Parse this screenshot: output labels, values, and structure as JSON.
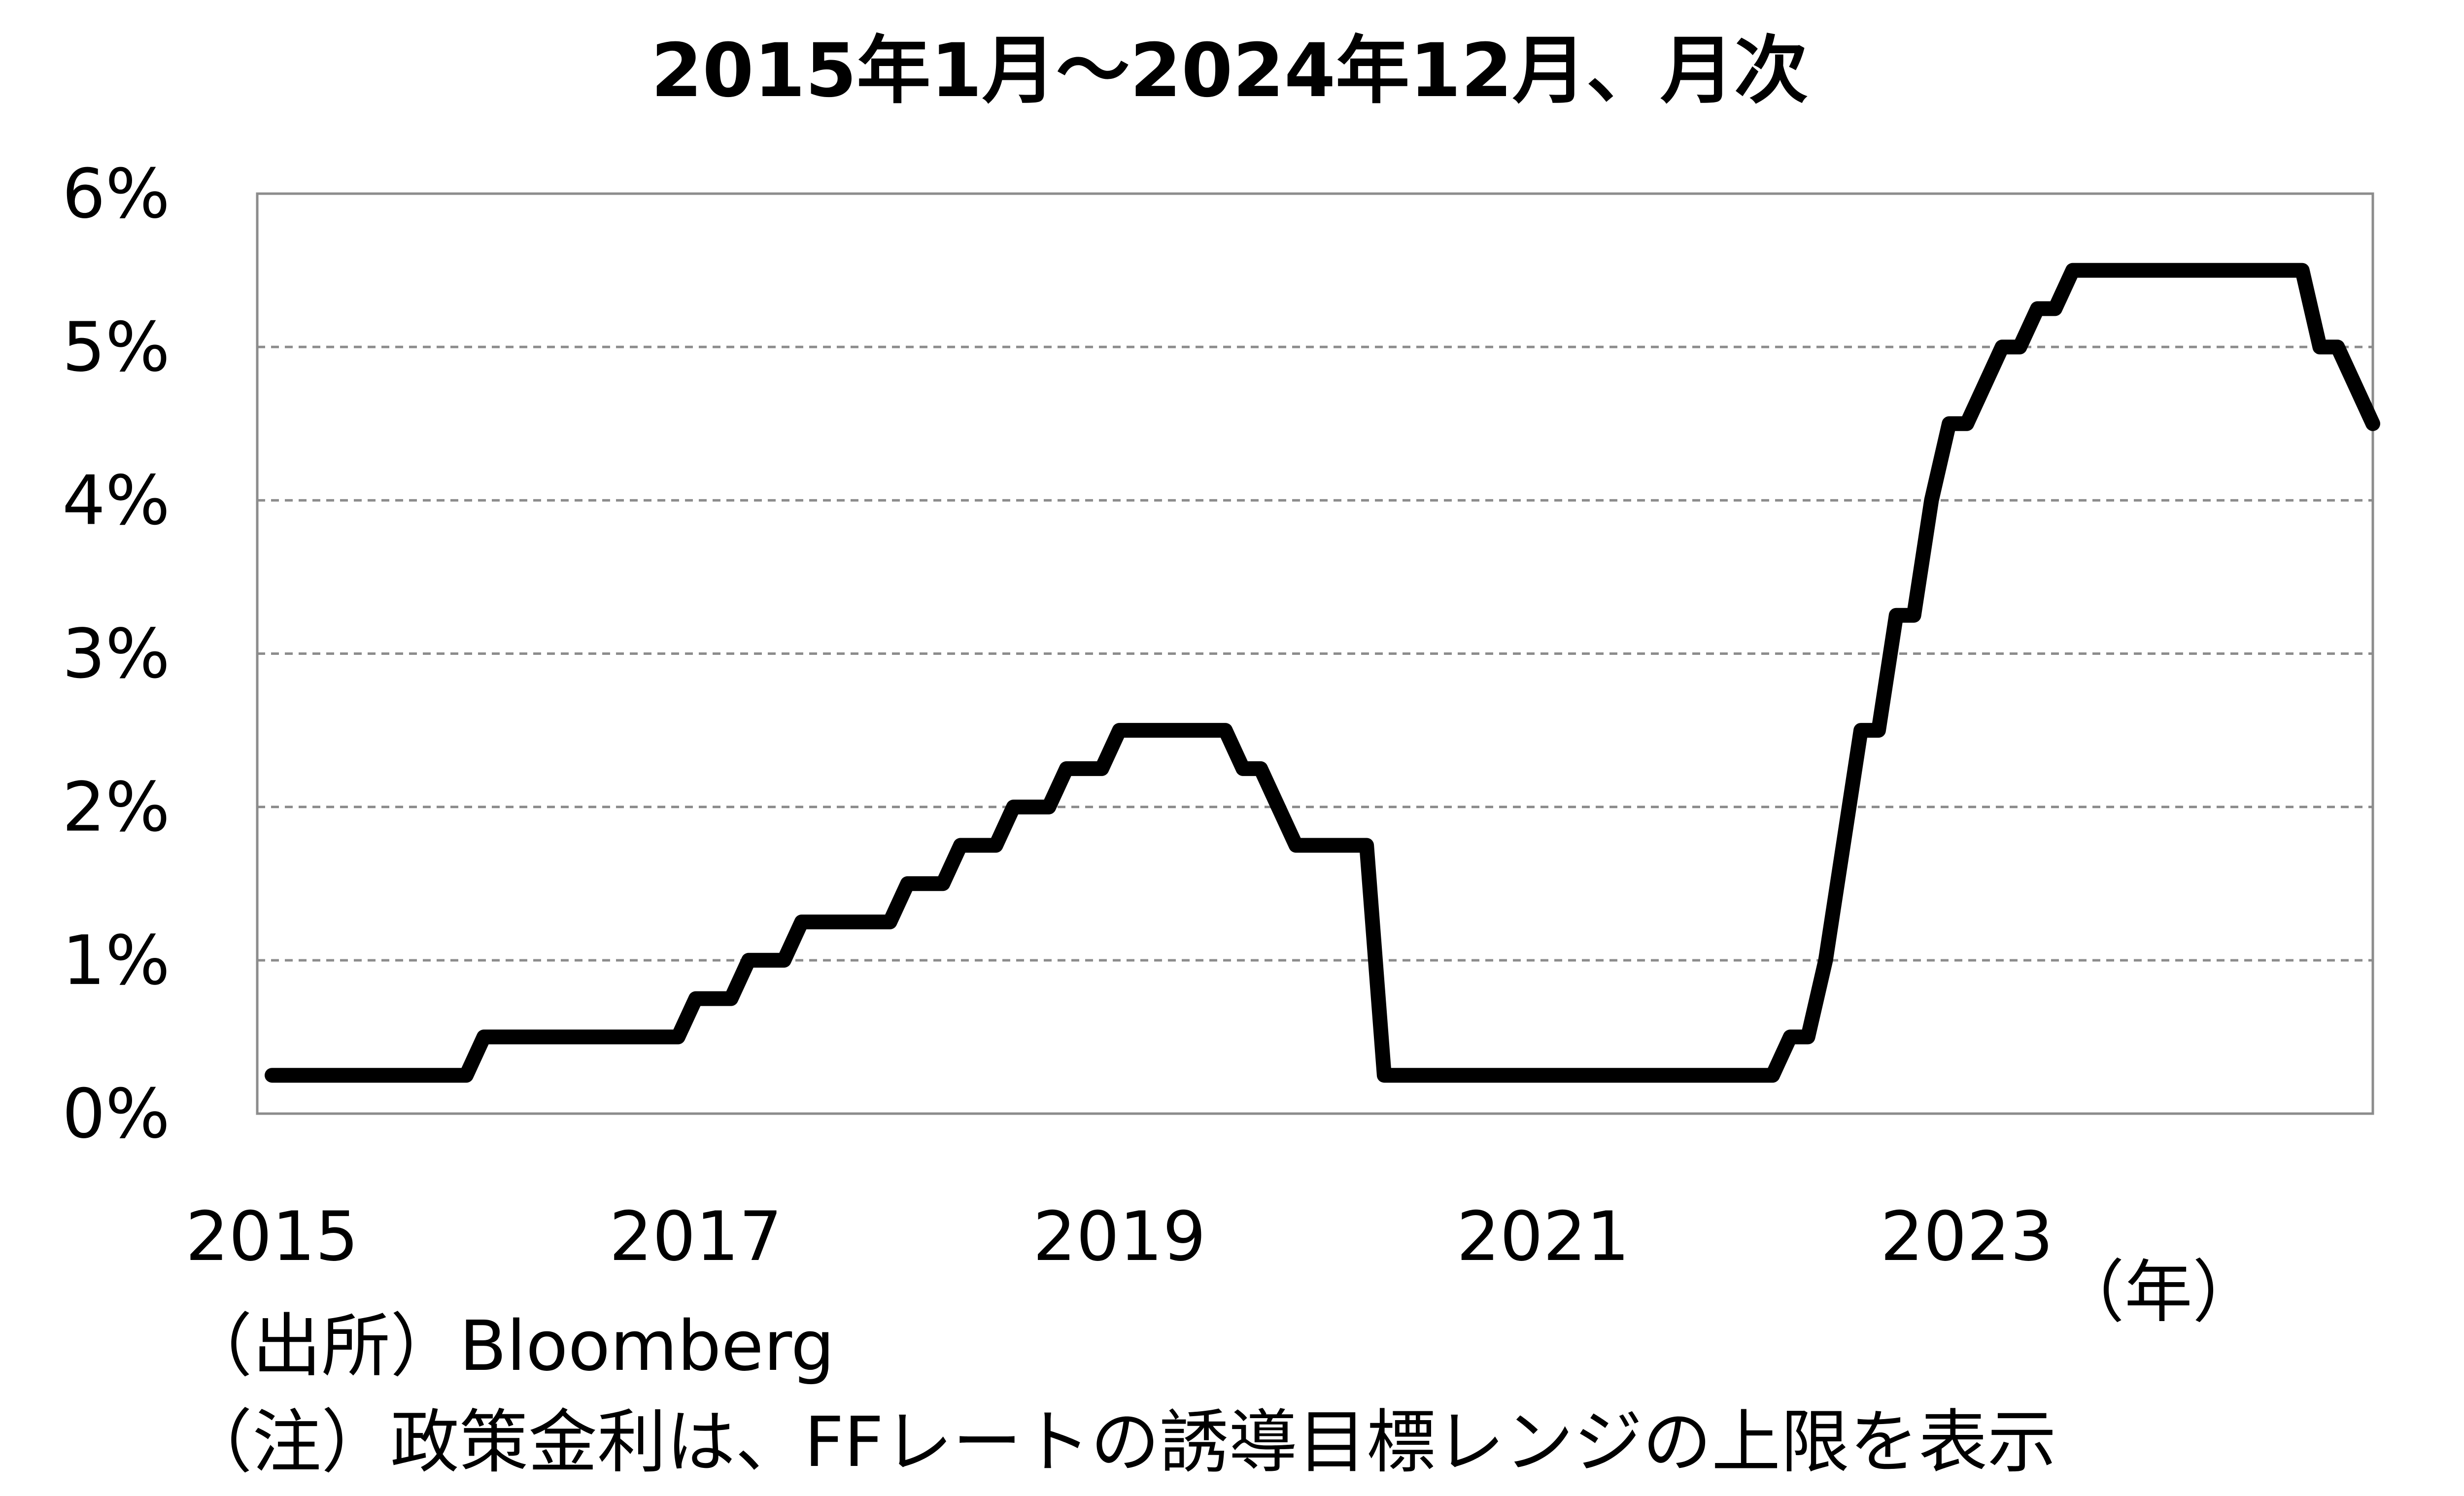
{
  "chart_data": {
    "type": "line",
    "title": "2015年1月～2024年12月、月次",
    "xlabel": "",
    "ylabel": "",
    "x_unit_label": "（年）",
    "x_tick_labels": [
      "2015",
      "2017",
      "2019",
      "2021",
      "2023"
    ],
    "y_tick_labels": [
      "0%",
      "1%",
      "2%",
      "3%",
      "4%",
      "5%",
      "6%"
    ],
    "ylim": [
      0,
      6
    ],
    "x_start": "2015-01",
    "x_end": "2024-12",
    "grid": "horizontal dashed",
    "legend": "none",
    "series": [
      {
        "values": [
          0.25,
          0.25,
          0.25,
          0.25,
          0.25,
          0.25,
          0.25,
          0.25,
          0.25,
          0.25,
          0.25,
          0.25,
          0.5,
          0.5,
          0.5,
          0.5,
          0.5,
          0.5,
          0.5,
          0.5,
          0.5,
          0.5,
          0.5,
          0.5,
          0.75,
          0.75,
          0.75,
          1.0,
          1.0,
          1.0,
          1.25,
          1.25,
          1.25,
          1.25,
          1.25,
          1.25,
          1.5,
          1.5,
          1.5,
          1.75,
          1.75,
          1.75,
          2.0,
          2.0,
          2.0,
          2.25,
          2.25,
          2.25,
          2.5,
          2.5,
          2.5,
          2.5,
          2.5,
          2.5,
          2.5,
          2.25,
          2.25,
          2.0,
          1.75,
          1.75,
          1.75,
          1.75,
          1.75,
          0.25,
          0.25,
          0.25,
          0.25,
          0.25,
          0.25,
          0.25,
          0.25,
          0.25,
          0.25,
          0.25,
          0.25,
          0.25,
          0.25,
          0.25,
          0.25,
          0.25,
          0.25,
          0.25,
          0.25,
          0.25,
          0.25,
          0.25,
          0.5,
          0.5,
          1.0,
          1.75,
          2.5,
          2.5,
          3.25,
          3.25,
          4.0,
          4.5,
          4.5,
          4.75,
          5.0,
          5.0,
          5.25,
          5.25,
          5.5,
          5.5,
          5.5,
          5.5,
          5.5,
          5.5,
          5.5,
          5.5,
          5.5,
          5.5,
          5.5,
          5.5,
          5.5,
          5.5,
          5.0,
          5.0,
          4.75,
          4.5
        ]
      }
    ],
    "colors": {
      "line": "#000000",
      "grid": "#8c8c8c",
      "frame": "#8c8c8c"
    }
  },
  "notes": {
    "source": "（出所）Bloomberg",
    "note": "（注）政策金利は、FFレートの誘導目標レンジの上限を表示"
  }
}
